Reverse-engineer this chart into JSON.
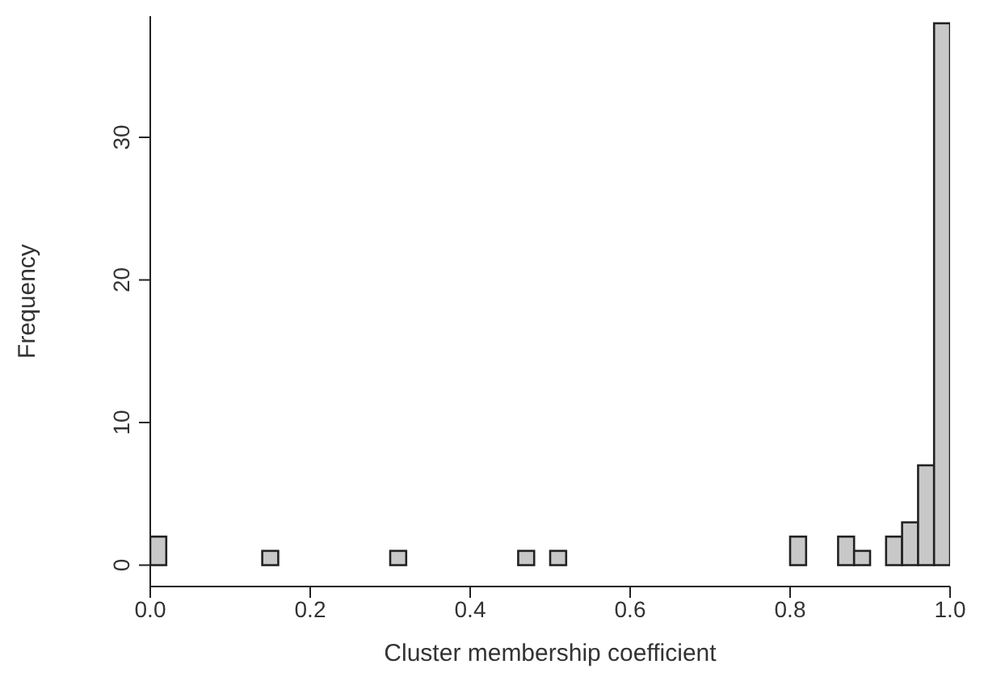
{
  "chart_data": {
    "type": "histogram",
    "xlabel": "Cluster membership coefficient",
    "ylabel": "Frequency",
    "bins": [
      0,
      0.02,
      0.04,
      0.06,
      0.08,
      0.1,
      0.12,
      0.14,
      0.16,
      0.18,
      0.2,
      0.22,
      0.24,
      0.26,
      0.28,
      0.3,
      0.32,
      0.34,
      0.36,
      0.38,
      0.4,
      0.42,
      0.44,
      0.46,
      0.48,
      0.5,
      0.52,
      0.54,
      0.56,
      0.58,
      0.6,
      0.62,
      0.64,
      0.66,
      0.68,
      0.7,
      0.72,
      0.74,
      0.76,
      0.78,
      0.8,
      0.82,
      0.84,
      0.86,
      0.88,
      0.9,
      0.92,
      0.94,
      0.96,
      0.98,
      1
    ],
    "values": [
      2,
      0,
      0,
      0,
      0,
      0,
      0,
      1,
      0,
      0,
      0,
      0,
      0,
      0,
      0,
      1,
      0,
      0,
      0,
      0,
      0,
      0,
      0,
      1,
      0,
      1,
      0,
      0,
      0,
      0,
      0,
      0,
      0,
      0,
      0,
      0,
      0,
      0,
      0,
      0,
      2,
      0,
      0,
      2,
      1,
      0,
      2,
      3,
      7,
      38
    ],
    "color": "#c8c8c8",
    "xlim": [
      0,
      1
    ],
    "xticks": [
      {
        "value": 0,
        "label": "0.0"
      },
      0.2,
      0.4,
      0.6,
      0.8,
      {
        "value": 1,
        "label": "1.0"
      }
    ],
    "ylim": [
      -1.5,
      38.5
    ],
    "yticks": [
      0,
      10,
      20,
      30
    ],
    "grid": false
  }
}
